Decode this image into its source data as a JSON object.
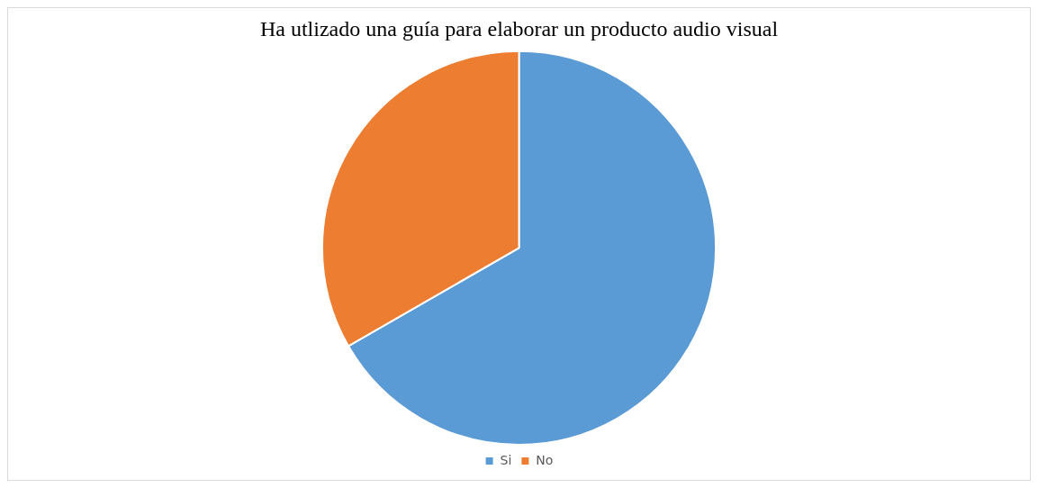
{
  "chart_data": {
    "type": "pie",
    "title": "Ha utlizado una guía para elaborar un producto audio visual",
    "categories": [
      "Si",
      "No"
    ],
    "values": [
      66.7,
      33.3
    ],
    "colors": [
      "#5b9bd5",
      "#ed7d31"
    ],
    "legend": "bottom"
  }
}
